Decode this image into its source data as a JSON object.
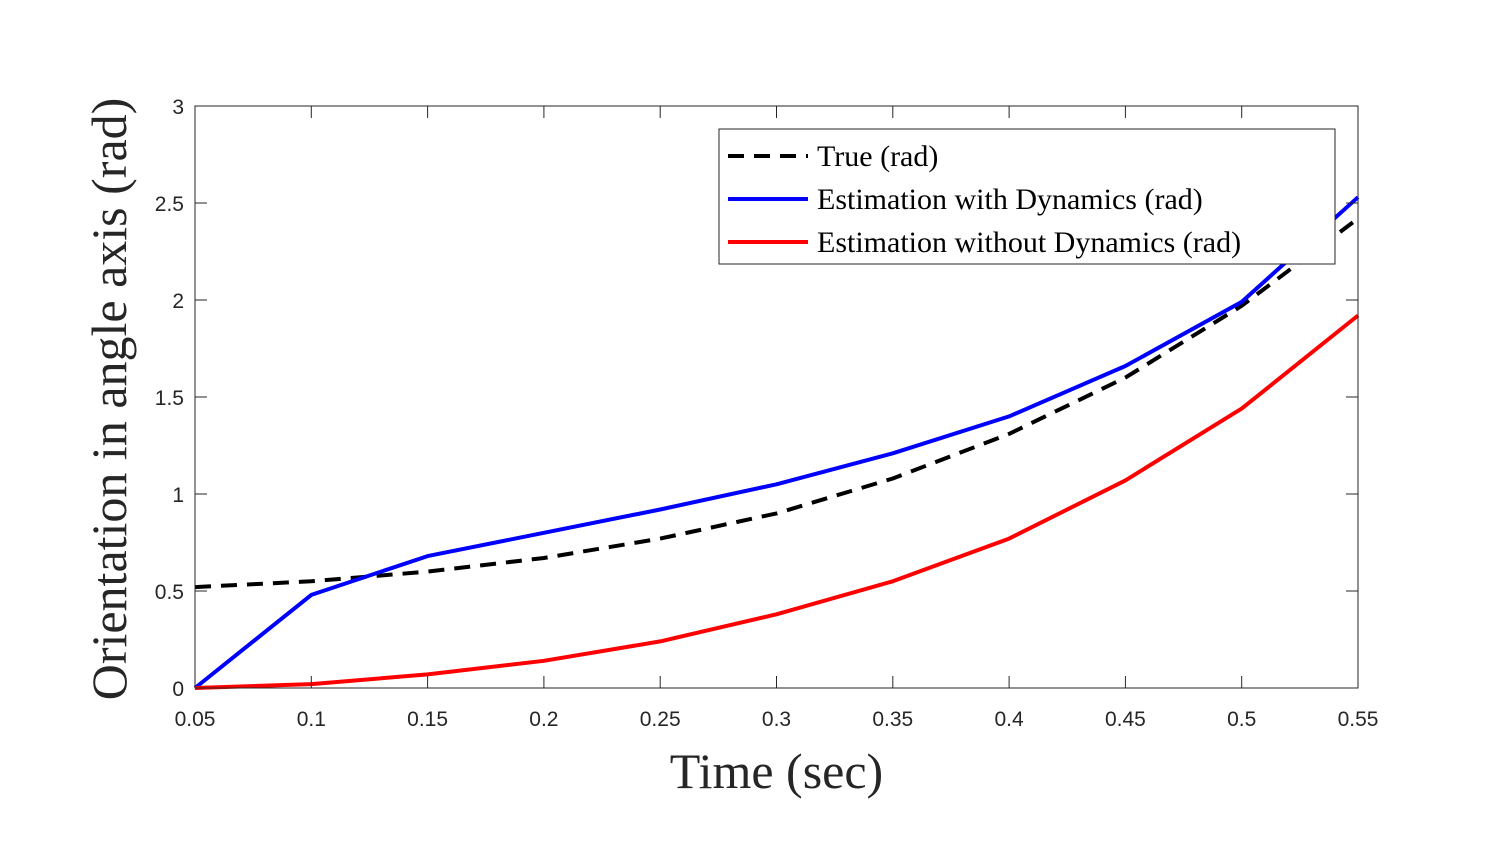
{
  "chart_data": {
    "type": "line",
    "xlabel": "Time (sec)",
    "ylabel": "Orientation in angle axis (rad)",
    "xlim": [
      0.05,
      0.55
    ],
    "ylim": [
      0,
      3
    ],
    "xticks": [
      "0.05",
      "0.1",
      "0.15",
      "0.2",
      "0.25",
      "0.3",
      "0.35",
      "0.4",
      "0.45",
      "0.5",
      "0.55"
    ],
    "yticks": [
      "0",
      "0.5",
      "1",
      "1.5",
      "2",
      "2.5",
      "3"
    ],
    "grid": false,
    "legend_position": "top-right",
    "x": [
      0.05,
      0.1,
      0.15,
      0.2,
      0.25,
      0.3,
      0.35,
      0.4,
      0.45,
      0.5,
      0.55
    ],
    "series": [
      {
        "name": "True (rad)",
        "color": "#000000",
        "style": "dashed",
        "values": [
          0.52,
          0.55,
          0.6,
          0.67,
          0.77,
          0.9,
          1.08,
          1.31,
          1.6,
          1.97,
          2.42
        ]
      },
      {
        "name": "Estimation with Dynamics (rad)",
        "color": "#0000ff",
        "style": "solid",
        "values": [
          0.0,
          0.48,
          0.68,
          0.8,
          0.92,
          1.05,
          1.21,
          1.4,
          1.66,
          1.99,
          2.53
        ]
      },
      {
        "name": "Estimation without Dynamics (rad)",
        "color": "#ff0000",
        "style": "solid",
        "values": [
          0.0,
          0.02,
          0.07,
          0.14,
          0.24,
          0.38,
          0.55,
          0.77,
          1.07,
          1.44,
          1.92
        ]
      }
    ]
  }
}
